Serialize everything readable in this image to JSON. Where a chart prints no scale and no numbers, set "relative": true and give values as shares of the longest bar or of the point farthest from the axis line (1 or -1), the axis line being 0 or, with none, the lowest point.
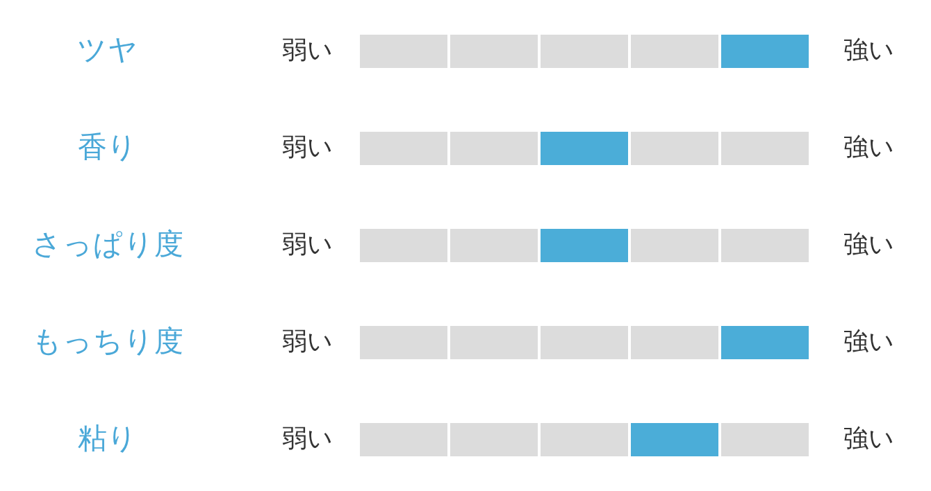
{
  "chart_data": {
    "type": "bar",
    "orientation": "horizontal",
    "stacked": true,
    "relative": true,
    "categories": [
      "ツヤ",
      "香り",
      "さっぱり度",
      "もっちり度",
      "粘り"
    ],
    "y2_categories": [
      "強い",
      "強い",
      "強い",
      "強い",
      "強い"
    ],
    "annotations": [
      "弱い",
      "弱い",
      "弱い",
      "弱い",
      "弱い"
    ],
    "series": [
      {
        "colors": [
          "#dcdcdc",
          "#dcdcdc",
          "#dcdcdc",
          "#dcdcdc",
          "#dcdcdc"
        ],
        "values": [
          0.2,
          0.2,
          0.2,
          0.2,
          0.2
        ]
      },
      {
        "colors": [
          "#dcdcdc",
          "#dcdcdc",
          "#dcdcdc",
          "#dcdcdc",
          "#dcdcdc"
        ],
        "values": [
          0.2,
          0.2,
          0.2,
          0.2,
          0.2
        ]
      },
      {
        "colors": [
          "#dcdcdc",
          "#4badd8",
          "#4badd8",
          "#dcdcdc",
          "#dcdcdc"
        ],
        "values": [
          0.2,
          0.2,
          0.2,
          0.2,
          0.2
        ]
      },
      {
        "colors": [
          "#dcdcdc",
          "#dcdcdc",
          "#dcdcdc",
          "#dcdcdc",
          "#4badd8"
        ],
        "values": [
          0.2,
          0.2,
          0.2,
          0.2,
          0.2
        ]
      },
      {
        "colors": [
          "#4badd8",
          "#dcdcdc",
          "#dcdcdc",
          "#4badd8",
          "#dcdcdc"
        ],
        "values": [
          0.2,
          0.2,
          0.2,
          0.2,
          0.2
        ]
      }
    ]
  }
}
